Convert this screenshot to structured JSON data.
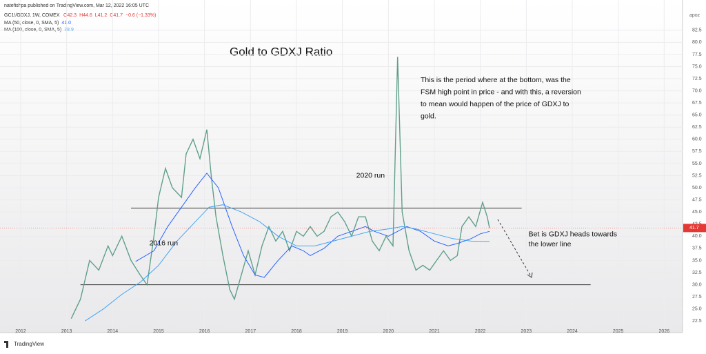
{
  "header": {
    "text": "natefishpa published on TradingView.com, Mar 12, 2022 16:05 UTC",
    "corner": "apoz",
    "footer": "TradingView"
  },
  "legend": {
    "symbol": "GC1!/GDXJ, 1W, COMEX",
    "ohlc": [
      "O42.3",
      "H44.6",
      "L41.2",
      "C41.7",
      "−0.6 (−1.33%)"
    ],
    "ma": [
      {
        "label": "MA (50, close, 0, SMA, 5)",
        "value": "41.0"
      },
      {
        "label": "MA (100, close, 0, SMA, 5)",
        "value": "38.9"
      }
    ]
  },
  "chart_data": {
    "type": "line",
    "title": "Gold to GDXJ Ratio",
    "xlim": [
      2011.55,
      2026.4
    ],
    "xticks": [
      2012,
      2013,
      2014,
      2015,
      2016,
      2017,
      2018,
      2019,
      2020,
      2021,
      2022,
      2023,
      2024,
      2025,
      2026
    ],
    "ylim": [
      20.4,
      86.6
    ],
    "yticks": [
      22.5,
      {
        "value": 25,
        "label": "25.0"
      },
      27.5,
      {
        "value": 30,
        "label": "30.0"
      },
      32.5,
      {
        "value": 35,
        "label": "35.0"
      },
      37.5,
      {
        "value": 40,
        "label": "40.0"
      },
      42.5,
      {
        "value": 45,
        "label": "45.0"
      },
      47.5,
      {
        "value": 50,
        "label": "50.0"
      },
      52.5,
      {
        "value": 55,
        "label": "55.0"
      },
      57.5,
      {
        "value": 60,
        "label": "60.0"
      },
      62.5,
      {
        "value": 65,
        "label": "65.0"
      },
      67.5,
      {
        "value": 70,
        "label": "70.0"
      },
      72.5,
      {
        "value": 75,
        "label": "75.0"
      },
      77.5,
      {
        "value": 80,
        "label": "80.0"
      },
      82.5
    ],
    "grid": true,
    "series": [
      {
        "color": "#5f9f8a",
        "x": [
          2013.1,
          2013.3,
          2013.5,
          2013.7,
          2013.9,
          2014.0,
          2014.2,
          2014.4,
          2014.6,
          2014.75,
          2014.9,
          2015.0,
          2015.15,
          2015.3,
          2015.5,
          2015.6,
          2015.75,
          2015.9,
          2016.05,
          2016.15,
          2016.25,
          2016.4,
          2016.55,
          2016.65,
          2016.8,
          2016.95,
          2017.1,
          2017.25,
          2017.4,
          2017.55,
          2017.7,
          2017.85,
          2018.0,
          2018.15,
          2018.3,
          2018.45,
          2018.6,
          2018.75,
          2018.9,
          2019.05,
          2019.2,
          2019.35,
          2019.5,
          2019.65,
          2019.8,
          2019.95,
          2020.1,
          2020.2,
          2020.3,
          2020.45,
          2020.6,
          2020.75,
          2020.9,
          2021.05,
          2021.2,
          2021.35,
          2021.5,
          2021.6,
          2021.75,
          2021.9,
          2022.05,
          2022.15,
          2022.2
        ],
        "values": [
          23,
          27,
          35,
          33,
          38,
          36,
          40,
          35,
          32,
          30,
          40,
          48,
          54,
          50,
          48,
          57,
          60,
          56,
          62,
          52,
          44,
          36,
          29,
          27,
          32,
          37,
          32,
          38,
          42,
          39,
          41,
          37,
          41,
          40,
          42,
          40,
          41,
          44,
          45,
          43,
          40,
          44,
          44,
          39,
          37,
          40,
          38,
          77,
          45,
          37,
          33,
          34,
          33,
          35,
          37,
          35,
          36,
          42,
          44,
          42,
          47,
          44,
          41.7
        ]
      },
      {
        "color": "#2962ff",
        "x": [
          2014.5,
          2014.9,
          2015.2,
          2015.5,
          2015.8,
          2016.05,
          2016.3,
          2016.6,
          2016.85,
          2017.1,
          2017.3,
          2017.6,
          2017.9,
          2018.15,
          2018.3,
          2018.6,
          2018.9,
          2019.2,
          2019.5,
          2019.7,
          2020.0,
          2020.2,
          2020.4,
          2020.7,
          2021.0,
          2021.3,
          2021.5,
          2021.8,
          2022.0,
          2022.2
        ],
        "values": [
          34.8,
          37,
          42,
          46,
          50,
          53,
          50,
          42,
          36,
          32,
          31.5,
          35,
          38,
          37,
          36,
          37.5,
          40,
          41,
          42,
          41,
          40,
          41,
          42,
          41,
          39,
          38,
          38.5,
          39.5,
          40.5,
          41.0
        ]
      },
      {
        "color": "#42a5f5",
        "x": [
          2013.4,
          2013.8,
          2014.2,
          2014.6,
          2015.0,
          2015.4,
          2015.8,
          2016.1,
          2016.4,
          2016.8,
          2017.2,
          2017.6,
          2018.0,
          2018.4,
          2018.8,
          2019.2,
          2019.6,
          2020.0,
          2020.3,
          2020.6,
          2021.0,
          2021.4,
          2021.8,
          2022.2
        ],
        "values": [
          22.5,
          25,
          28,
          30.5,
          34,
          39,
          43,
          46,
          46.5,
          45,
          43,
          40,
          38,
          38,
          39,
          40,
          41,
          41.5,
          42,
          41.5,
          40.5,
          39.5,
          39,
          38.9
        ]
      }
    ],
    "levels": [
      {
        "value": 45.8,
        "from": 2014.4,
        "to": 2022.9
      },
      {
        "value": 30.0,
        "from": 2013.3,
        "to": 2024.4
      }
    ],
    "annotations": [
      {
        "text": "2016 run",
        "x": 2014.8,
        "y": 38.5
      },
      {
        "text": "2020 run",
        "x": 2019.3,
        "y": 52.5
      },
      {
        "text": "This is the period where at the bottom, was the",
        "x": 2020.7,
        "y": 72.2
      },
      {
        "text": "FSM high point in price - and with this, a reversion",
        "x": 2020.7,
        "y": 69.7
      },
      {
        "text": "to mean would happen of the price of GDXJ to",
        "x": 2020.7,
        "y": 67.2
      },
      {
        "text": "gold.",
        "x": 2020.7,
        "y": 64.7
      },
      {
        "text": "Bet is GDXJ heads towards",
        "x": 2023.05,
        "y": 40.4
      },
      {
        "text": "the lower line",
        "x": 2023.05,
        "y": 38.3
      }
    ]
  }
}
